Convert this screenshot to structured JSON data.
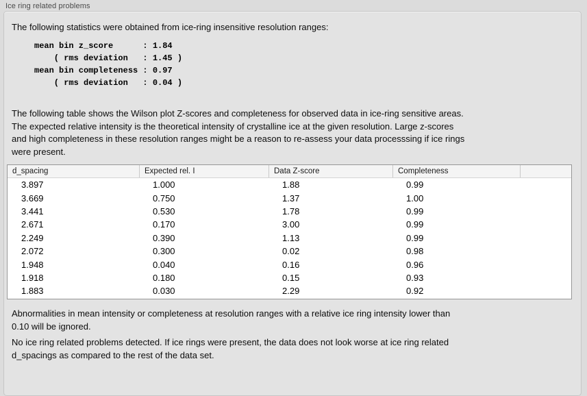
{
  "window": {
    "group_label": "Ice ring related problems"
  },
  "panel": {
    "intro_text": "The following statistics were obtained from ice-ring insensitive resolution ranges:",
    "stats_block": "mean bin z_score      : 1.84\n    ( rms deviation   : 1.45 )\nmean bin completeness : 0.97\n    ( rms deviation   : 0.04 )",
    "stats": {
      "mean_bin_z_score": "1.84",
      "z_score_rms_deviation": "1.45",
      "mean_bin_completeness": "0.97",
      "completeness_rms_deviation": "0.04"
    },
    "table_description": "The following table shows the Wilson plot Z-scores and completeness for observed data in ice-ring sensitive areas.\nThe expected relative intensity is the theoretical intensity of crystalline ice at the given resolution. Large z-scores\nand high completeness in these resolution ranges might be a reason to re-assess your data processsing if ice rings\nwere present.",
    "note_text": "Abnormalities in mean intensity or completeness at resolution ranges with a relative ice ring intensity lower than\n0.10 will be ignored.",
    "conclusion_text": "No ice ring related problems detected. If ice rings were present, the data does not look worse at ice ring related\nd_spacings as compared to the rest of the data set."
  },
  "table": {
    "columns": [
      "d_spacing",
      "Expected rel. I",
      "Data Z-score",
      "Completeness",
      ""
    ],
    "rows": [
      [
        "3.897",
        "1.000",
        "1.88",
        "0.99",
        ""
      ],
      [
        "3.669",
        "0.750",
        "1.37",
        "1.00",
        ""
      ],
      [
        "3.441",
        "0.530",
        "1.78",
        "0.99",
        ""
      ],
      [
        "2.671",
        "0.170",
        "3.00",
        "0.99",
        ""
      ],
      [
        "2.249",
        "0.390",
        "1.13",
        "0.99",
        ""
      ],
      [
        "2.072",
        "0.300",
        "0.02",
        "0.98",
        ""
      ],
      [
        "1.948",
        "0.040",
        "0.16",
        "0.96",
        ""
      ],
      [
        "1.918",
        "0.180",
        "0.15",
        "0.93",
        ""
      ],
      [
        "1.883",
        "0.030",
        "2.29",
        "0.92",
        ""
      ]
    ]
  },
  "colors": {
    "page_background": "#dcdcdc",
    "groupbox_background": "#e3e3e3",
    "groupbox_border": "#c6c6c6",
    "table_background": "#ffffff",
    "table_border": "#979797",
    "table_header_background": "#f4f4f4",
    "text": "#0c0c0c"
  }
}
